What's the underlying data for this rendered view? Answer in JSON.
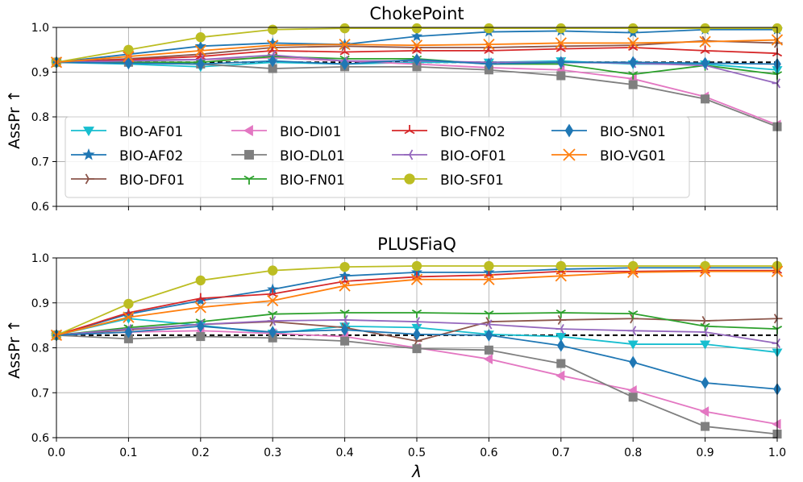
{
  "chart_data": {
    "type": "line",
    "x": [
      0.0,
      0.1,
      0.2,
      0.3,
      0.4,
      0.5,
      0.6,
      0.7,
      0.8,
      0.9,
      1.0
    ],
    "x_tick_labels": [
      "0.0",
      "0.1",
      "0.2",
      "0.3",
      "0.4",
      "0.5",
      "0.6",
      "0.7",
      "0.8",
      "0.9",
      "1.0"
    ],
    "xlabel": "λ",
    "ylabel": "AssPr ↑",
    "xlim": [
      0.0,
      1.0
    ],
    "ylim": [
      0.6,
      1.0
    ],
    "y_tick_labels": [
      "0.6",
      "0.7",
      "0.8",
      "0.9",
      "1.0"
    ],
    "grid": true,
    "legend_placement": "lower-left of top panel, 4 columns",
    "series_styles": [
      {
        "name": "BIO-AF01",
        "color": "#17becf",
        "marker": "tri-down"
      },
      {
        "name": "BIO-AF02",
        "color": "#1f77b4",
        "marker": "star"
      },
      {
        "name": "BIO-DF01",
        "color": "#8c564b",
        "marker": "tri-right"
      },
      {
        "name": "BIO-DI01",
        "color": "#e377c2",
        "marker": "tri-left"
      },
      {
        "name": "BIO-DL01",
        "color": "#7f7f7f",
        "marker": "square"
      },
      {
        "name": "BIO-FN01",
        "color": "#2ca02c",
        "marker": "tri-down-thin"
      },
      {
        "name": "BIO-FN02",
        "color": "#d62728",
        "marker": "tri-up-thin"
      },
      {
        "name": "BIO-OF01",
        "color": "#9467bd",
        "marker": "tri-left-thin"
      },
      {
        "name": "BIO-SF01",
        "color": "#bcbd22",
        "marker": "circle"
      },
      {
        "name": "BIO-SN01",
        "color": "#1f77b4",
        "marker": "diamond"
      },
      {
        "name": "BIO-VG01",
        "color": "#ff7f0e",
        "marker": "x"
      }
    ],
    "panels": [
      {
        "title": "ChokePoint",
        "baseline": 0.922,
        "series": [
          {
            "name": "BIO-AF01",
            "values": [
              0.922,
              0.918,
              0.912,
              0.922,
              0.918,
              0.922,
              0.922,
              0.925,
              0.918,
              0.918,
              0.905
            ]
          },
          {
            "name": "BIO-AF02",
            "values": [
              0.922,
              0.94,
              0.958,
              0.965,
              0.962,
              0.98,
              0.99,
              0.992,
              0.988,
              0.995,
              0.995
            ]
          },
          {
            "name": "BIO-DF01",
            "values": [
              0.922,
              0.93,
              0.94,
              0.955,
              0.958,
              0.955,
              0.955,
              0.958,
              0.96,
              0.97,
              0.965
            ]
          },
          {
            "name": "BIO-DI01",
            "values": [
              0.922,
              0.928,
              0.928,
              0.932,
              0.925,
              0.918,
              0.91,
              0.905,
              0.885,
              0.845,
              0.782
            ]
          },
          {
            "name": "BIO-DL01",
            "values": [
              0.922,
              0.922,
              0.918,
              0.908,
              0.912,
              0.912,
              0.905,
              0.892,
              0.872,
              0.84,
              0.778
            ]
          },
          {
            "name": "BIO-FN01",
            "values": [
              0.922,
              0.922,
              0.922,
              0.935,
              0.93,
              0.93,
              0.918,
              0.918,
              0.895,
              0.915,
              0.895
            ]
          },
          {
            "name": "BIO-FN02",
            "values": [
              0.922,
              0.928,
              0.935,
              0.948,
              0.945,
              0.948,
              0.948,
              0.952,
              0.955,
              0.948,
              0.942
            ]
          },
          {
            "name": "BIO-OF01",
            "values": [
              0.922,
              0.925,
              0.928,
              0.938,
              0.925,
              0.925,
              0.922,
              0.922,
              0.92,
              0.915,
              0.875
            ]
          },
          {
            "name": "BIO-SF01",
            "values": [
              0.922,
              0.95,
              0.978,
              0.995,
              0.998,
              0.998,
              0.998,
              0.998,
              0.998,
              0.998,
              0.998
            ]
          },
          {
            "name": "BIO-SN01",
            "values": [
              0.922,
              0.92,
              0.918,
              0.925,
              0.918,
              0.928,
              0.918,
              0.922,
              0.922,
              0.92,
              0.918
            ]
          },
          {
            "name": "BIO-VG01",
            "values": [
              0.922,
              0.935,
              0.948,
              0.96,
              0.962,
              0.96,
              0.962,
              0.965,
              0.965,
              0.968,
              0.972
            ]
          }
        ]
      },
      {
        "title": "PLUSFiaQ",
        "baseline": 0.828,
        "series": [
          {
            "name": "BIO-AF01",
            "values": [
              0.828,
              0.865,
              0.85,
              0.832,
              0.848,
              0.845,
              0.83,
              0.825,
              0.808,
              0.808,
              0.79
            ]
          },
          {
            "name": "BIO-AF02",
            "values": [
              0.828,
              0.875,
              0.905,
              0.93,
              0.96,
              0.968,
              0.968,
              0.975,
              0.978,
              0.978,
              0.978
            ]
          },
          {
            "name": "BIO-DF01",
            "values": [
              0.828,
              0.84,
              0.852,
              0.858,
              0.845,
              0.815,
              0.858,
              0.862,
              0.865,
              0.86,
              0.865
            ]
          },
          {
            "name": "BIO-DI01",
            "values": [
              0.828,
              0.835,
              0.838,
              0.832,
              0.825,
              0.8,
              0.775,
              0.738,
              0.705,
              0.658,
              0.63
            ]
          },
          {
            "name": "BIO-DL01",
            "values": [
              0.828,
              0.82,
              0.825,
              0.822,
              0.815,
              0.798,
              0.795,
              0.765,
              0.69,
              0.625,
              0.608
            ]
          },
          {
            "name": "BIO-FN01",
            "values": [
              0.828,
              0.845,
              0.858,
              0.875,
              0.878,
              0.878,
              0.876,
              0.878,
              0.876,
              0.848,
              0.842
            ]
          },
          {
            "name": "BIO-FN02",
            "values": [
              0.828,
              0.878,
              0.91,
              0.92,
              0.948,
              0.958,
              0.962,
              0.97,
              0.97,
              0.972,
              0.972
            ]
          },
          {
            "name": "BIO-OF01",
            "values": [
              0.828,
              0.842,
              0.852,
              0.86,
              0.862,
              0.858,
              0.852,
              0.842,
              0.838,
              0.835,
              0.81
            ]
          },
          {
            "name": "BIO-SF01",
            "values": [
              0.828,
              0.898,
              0.95,
              0.972,
              0.98,
              0.982,
              0.982,
              0.982,
              0.982,
              0.982,
              0.982
            ]
          },
          {
            "name": "BIO-SN01",
            "values": [
              0.828,
              0.835,
              0.848,
              0.835,
              0.84,
              0.83,
              0.828,
              0.805,
              0.768,
              0.722,
              0.708
            ]
          },
          {
            "name": "BIO-VG01",
            "values": [
              0.828,
              0.868,
              0.89,
              0.905,
              0.938,
              0.952,
              0.952,
              0.96,
              0.968,
              0.97,
              0.97
            ]
          }
        ]
      }
    ]
  }
}
